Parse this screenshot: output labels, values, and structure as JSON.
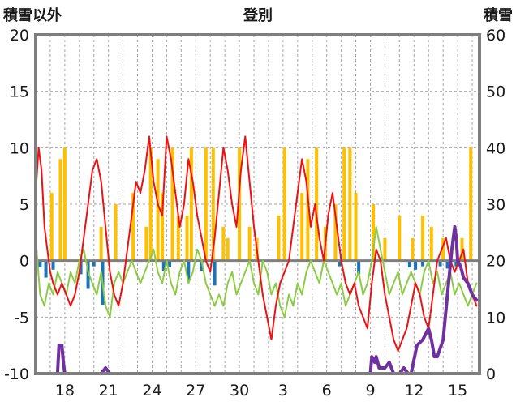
{
  "chart_data": {
    "type": "line",
    "title": "登別",
    "left_axis_label": "積雪以外",
    "right_axis_label": "積雪",
    "left_ylim": [
      -10,
      20
    ],
    "right_ylim": [
      0,
      60
    ],
    "left_ticks": [
      "-10",
      "-5",
      "0",
      "5",
      "10",
      "15",
      "20"
    ],
    "right_ticks": [
      "0",
      "10",
      "20",
      "30",
      "40",
      "50",
      "60"
    ],
    "x_ticks": [
      "18",
      "21",
      "24",
      "27",
      "30",
      "3",
      "6",
      "9",
      "12",
      "15"
    ],
    "x_tick_days": [
      2,
      5,
      8,
      11,
      14,
      17,
      20,
      23,
      26,
      29
    ],
    "x_range_days": [
      0,
      30.5
    ],
    "grid": true,
    "colors": {
      "max_temp": "#ee1111",
      "min_temp": "#8ccc44",
      "precip": "#ffc000",
      "snowfall": "#1a75b8",
      "snow_depth": "#7030a0",
      "frame": "#7f7f7f",
      "zero_line": "#7f7f7f",
      "grid": "#a6a6a6"
    },
    "series": [
      {
        "key": "max_temp",
        "axis": "left",
        "x": [
          0,
          0.2,
          0.4,
          0.6,
          0.8,
          1.0,
          1.2,
          1.5,
          1.8,
          2.1,
          2.4,
          2.7,
          3.0,
          3.3,
          3.6,
          3.9,
          4.2,
          4.5,
          4.8,
          5.1,
          5.4,
          5.7,
          6.0,
          6.3,
          6.6,
          6.9,
          7.2,
          7.5,
          7.8,
          8.1,
          8.4,
          8.7,
          9.0,
          9.3,
          9.6,
          9.9,
          10.2,
          10.5,
          10.8,
          11.1,
          11.4,
          11.7,
          12.0,
          12.3,
          12.6,
          12.9,
          13.2,
          13.5,
          13.8,
          14.1,
          14.4,
          14.7,
          15.0,
          15.3,
          15.6,
          15.9,
          16.2,
          16.5,
          16.8,
          17.1,
          17.4,
          17.7,
          18.0,
          18.3,
          18.6,
          18.9,
          19.2,
          19.5,
          19.8,
          20.1,
          20.4,
          20.7,
          21.0,
          21.3,
          21.6,
          21.9,
          22.2,
          22.5,
          22.8,
          23.1,
          23.4,
          23.7,
          24.0,
          24.3,
          24.6,
          24.9,
          25.2,
          25.5,
          25.8,
          26.1,
          26.4,
          26.7,
          27.0,
          27.3,
          27.6,
          27.9,
          28.2,
          28.5,
          28.8,
          29.1,
          29.4,
          29.7,
          30.0,
          30.3
        ],
        "y": [
          6,
          10,
          8,
          3,
          1,
          -1,
          -2,
          -3,
          -2,
          -3,
          -4,
          -3,
          -1,
          2,
          5,
          8,
          9,
          7,
          3,
          -1,
          -3,
          -4,
          -2,
          1,
          4,
          7,
          6,
          8,
          11,
          7,
          5,
          4,
          11,
          9,
          6,
          3,
          5,
          9,
          7,
          4,
          2,
          0,
          -1,
          2,
          6,
          10,
          8,
          5,
          3,
          8,
          11,
          7,
          3,
          0,
          -3,
          -5,
          -7,
          -4,
          -2,
          -1,
          0,
          3,
          6,
          9,
          7,
          3,
          5,
          2,
          0,
          4,
          6,
          3,
          0,
          -2,
          -3,
          -2,
          -4,
          -5,
          -6,
          -2,
          1,
          0,
          -3,
          -5,
          -7,
          -8,
          -7,
          -6,
          -4,
          -2,
          -3,
          -5,
          -6,
          -3,
          0,
          1,
          2,
          0,
          -1,
          0,
          1,
          -2,
          -3,
          -4
        ]
      },
      {
        "key": "min_temp",
        "axis": "left",
        "x": [
          0,
          0.3,
          0.6,
          0.9,
          1.2,
          1.5,
          1.8,
          2.1,
          2.4,
          2.7,
          3.0,
          3.3,
          3.6,
          3.9,
          4.2,
          4.5,
          4.8,
          5.1,
          5.4,
          5.7,
          6.0,
          6.3,
          6.6,
          6.9,
          7.2,
          7.5,
          7.8,
          8.1,
          8.4,
          8.7,
          9.0,
          9.3,
          9.6,
          9.9,
          10.2,
          10.5,
          10.8,
          11.1,
          11.4,
          11.7,
          12.0,
          12.3,
          12.6,
          12.9,
          13.2,
          13.5,
          13.8,
          14.1,
          14.4,
          14.7,
          15.0,
          15.3,
          15.6,
          15.9,
          16.2,
          16.5,
          16.8,
          17.1,
          17.4,
          17.7,
          18.0,
          18.3,
          18.6,
          18.9,
          19.2,
          19.5,
          19.8,
          20.1,
          20.4,
          20.7,
          21.0,
          21.3,
          21.6,
          21.9,
          22.2,
          22.5,
          22.8,
          23.1,
          23.4,
          23.7,
          24.0,
          24.3,
          24.6,
          24.9,
          25.2,
          25.5,
          25.8,
          26.1,
          26.4,
          26.7,
          27.0,
          27.3,
          27.6,
          27.9,
          28.2,
          28.5,
          28.8,
          29.1,
          29.4,
          29.7,
          30.0,
          30.3
        ],
        "y": [
          2,
          -3,
          -4,
          -2,
          -3,
          -1,
          -2,
          -3,
          -1,
          -2,
          0,
          1,
          -1,
          -2,
          -3,
          -1,
          -4,
          -5,
          -2,
          -1,
          -2,
          -1,
          0,
          -1,
          -2,
          -1,
          0,
          1,
          -1,
          -2,
          0,
          -2,
          -3,
          -1,
          0,
          -2,
          -1,
          1,
          0,
          -2,
          -3,
          -4,
          -3,
          -4,
          -2,
          -1,
          -3,
          -2,
          -1,
          0,
          -2,
          -3,
          0,
          -1,
          -3,
          -2,
          -4,
          -5,
          -3,
          -4,
          -2,
          -3,
          -1,
          0,
          -1,
          -2,
          0,
          -1,
          -2,
          -3,
          -2,
          -4,
          -3,
          -2,
          -1,
          -3,
          -2,
          0,
          3,
          1,
          -1,
          -3,
          -2,
          -1,
          -3,
          -2,
          -1,
          -2,
          -3,
          -1,
          0,
          -2,
          -1,
          -3,
          -2,
          -1,
          -3,
          -2,
          -3,
          -4,
          -3,
          -2
        ]
      },
      {
        "key": "snow_depth",
        "axis": "right",
        "x": [
          0,
          1.5,
          1.6,
          1.8,
          1.9,
          2.0,
          2.1,
          4.5,
          4.8,
          5.1,
          22.5,
          23.0,
          23.1,
          23.3,
          23.4,
          23.6,
          24.0,
          24.3,
          24.6,
          24.8,
          25.0,
          25.3,
          25.6,
          25.8,
          26.2,
          26.6,
          27.0,
          27.2,
          27.4,
          27.6,
          28.0,
          28.3,
          28.6,
          28.8,
          28.9,
          29.0,
          29.2,
          29.4,
          29.7,
          30.0,
          30.3
        ],
        "y": [
          0,
          0,
          5,
          5,
          2,
          0,
          0,
          0,
          1,
          0,
          0,
          0,
          3,
          2,
          3,
          1,
          1,
          2,
          0,
          0,
          0,
          1,
          0,
          0,
          5,
          6,
          8,
          6,
          3,
          3,
          6,
          14,
          22,
          26,
          24,
          20,
          19,
          17,
          16,
          14,
          13
        ]
      }
    ],
    "bar_series": [
      {
        "key": "precip",
        "axis": "left",
        "baseline": 0,
        "x": [
          1.1,
          1.7,
          2.0,
          4.5,
          5.5,
          6.7,
          7.6,
          7.9,
          8.4,
          8.7,
          9.4,
          9.8,
          10.4,
          10.7,
          11.7,
          12.2,
          12.9,
          13.2,
          14.0,
          14.7,
          15.2,
          16.7,
          17.1,
          18.3,
          18.7,
          19.3,
          19.9,
          20.6,
          21.2,
          21.6,
          22.0,
          23.2,
          24.0,
          25.0,
          25.9,
          26.6,
          27.2,
          28.0,
          29.3,
          29.9
        ],
        "y": [
          6,
          9,
          10,
          3,
          5,
          6,
          3,
          10,
          9,
          6,
          10,
          4,
          4,
          10,
          10,
          10,
          3,
          2,
          10,
          3,
          2,
          4,
          10,
          6,
          9,
          10,
          3,
          5,
          10,
          10,
          6,
          5,
          2,
          4,
          2,
          4,
          3,
          2,
          2,
          10
        ]
      },
      {
        "key": "snowfall",
        "axis": "left",
        "baseline": 0,
        "x": [
          0.3,
          0.7,
          1.2,
          3.1,
          3.6,
          4.0,
          4.6,
          8.8,
          9.2,
          10.5,
          11.4,
          12.3,
          20.9,
          22.2,
          25.7,
          26.1,
          26.6,
          27.8,
          28.3,
          28.9
        ],
        "y": [
          -0.6,
          -1.5,
          -0.8,
          -1.2,
          -2.5,
          -0.5,
          -3.9,
          -0.9,
          -0.6,
          -1.8,
          -0.9,
          -2.2,
          -0.5,
          -1.2,
          -0.6,
          -0.8,
          -0.5,
          -0.5,
          -0.7,
          -0.5
        ]
      }
    ]
  }
}
